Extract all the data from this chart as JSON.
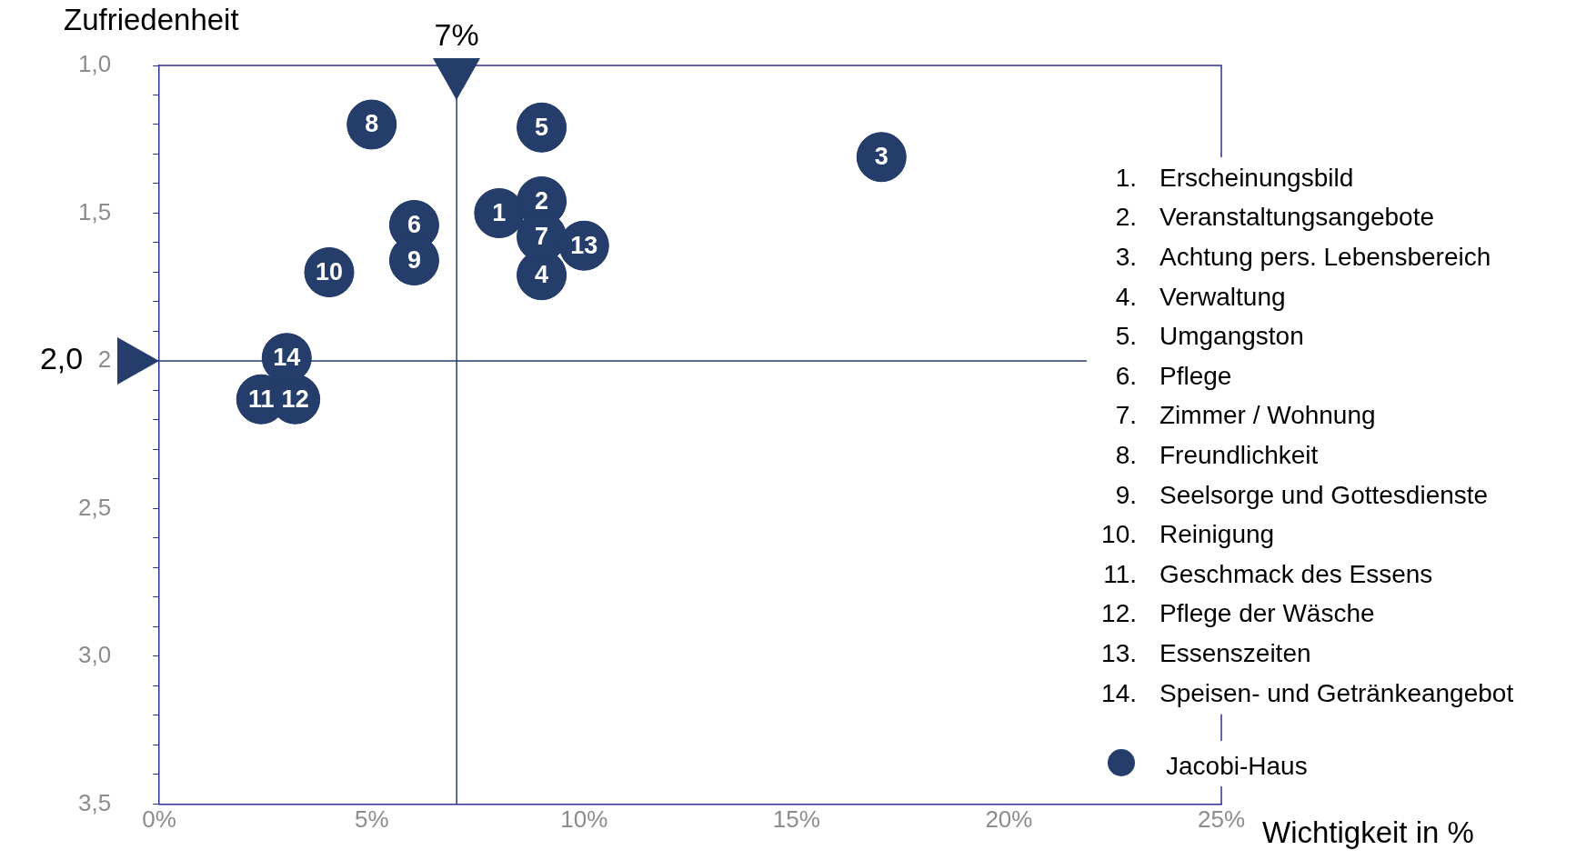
{
  "chart_data": {
    "type": "scatter",
    "xlabel": "Wichtigkeit in %",
    "ylabel": "Zufriedenheit",
    "xlim": [
      0,
      25
    ],
    "xticks": [
      {
        "value": 0,
        "label": "0%"
      },
      {
        "value": 5,
        "label": "5%"
      },
      {
        "value": 10,
        "label": "10%"
      },
      {
        "value": 15,
        "label": "15%"
      },
      {
        "value": 20,
        "label": "20%"
      },
      {
        "value": 25,
        "label": "25%"
      }
    ],
    "ylim": [
      3.5,
      1.0
    ],
    "yticks": [
      {
        "value": 1.0,
        "label": "1,0"
      },
      {
        "value": 1.1,
        "label": null
      },
      {
        "value": 1.2,
        "label": null
      },
      {
        "value": 1.3,
        "label": null
      },
      {
        "value": 1.4,
        "label": null
      },
      {
        "value": 1.5,
        "label": "1,5"
      },
      {
        "value": 1.6,
        "label": null
      },
      {
        "value": 1.7,
        "label": null
      },
      {
        "value": 1.8,
        "label": null
      },
      {
        "value": 1.9,
        "label": null
      },
      {
        "value": 2.0,
        "label": "2"
      },
      {
        "value": 2.1,
        "label": null
      },
      {
        "value": 2.2,
        "label": null
      },
      {
        "value": 2.3,
        "label": null
      },
      {
        "value": 2.4,
        "label": null
      },
      {
        "value": 2.5,
        "label": "2,5"
      },
      {
        "value": 2.6,
        "label": null
      },
      {
        "value": 2.7,
        "label": null
      },
      {
        "value": 2.8,
        "label": null
      },
      {
        "value": 2.9,
        "label": null
      },
      {
        "value": 3.0,
        "label": "3,0"
      },
      {
        "value": 3.1,
        "label": null
      },
      {
        "value": 3.2,
        "label": null
      },
      {
        "value": 3.3,
        "label": null
      },
      {
        "value": 3.4,
        "label": null
      },
      {
        "value": 3.5,
        "label": "3,5"
      }
    ],
    "grid": false,
    "legend": "bottom right",
    "marker": "circle",
    "series": [
      {
        "name": "Jacobi-Haus",
        "color": "#253d6b",
        "x": [
          8.0,
          9.0,
          17.0,
          9.0,
          9.0,
          6.0,
          9.0,
          5.0,
          6.0,
          4.0,
          2.4,
          3.2,
          10.0,
          3.0
        ],
        "values": [
          1.5,
          1.46,
          1.31,
          1.71,
          1.21,
          1.54,
          1.58,
          1.2,
          1.66,
          1.7,
          2.13,
          2.13,
          1.61,
          1.99
        ]
      }
    ],
    "ref_lines": [
      {
        "axis": "x",
        "value": 7,
        "label": "7%",
        "color": "#253d6b"
      },
      {
        "axis": "y",
        "value": 2.0,
        "label": "2,0",
        "color": "#253d6b"
      }
    ],
    "annotations": [
      {
        "text": "1",
        "x": 8.0,
        "y": 1.5
      },
      {
        "text": "2",
        "x": 9.0,
        "y": 1.46
      },
      {
        "text": "3",
        "x": 17.0,
        "y": 1.31
      },
      {
        "text": "4",
        "x": 9.0,
        "y": 1.71
      },
      {
        "text": "5",
        "x": 9.0,
        "y": 1.21
      },
      {
        "text": "6",
        "x": 6.0,
        "y": 1.54
      },
      {
        "text": "7",
        "x": 9.0,
        "y": 1.58
      },
      {
        "text": "8",
        "x": 5.0,
        "y": 1.2
      },
      {
        "text": "9",
        "x": 6.0,
        "y": 1.66
      },
      {
        "text": "10",
        "x": 4.0,
        "y": 1.7
      },
      {
        "text": "11",
        "x": 2.4,
        "y": 2.13
      },
      {
        "text": "12",
        "x": 3.2,
        "y": 2.13
      },
      {
        "text": "13",
        "x": 10.0,
        "y": 1.61
      },
      {
        "text": "14",
        "x": 3.0,
        "y": 1.99
      },
      "1. Erscheinungsbild",
      "2. Veranstaltungsangebote",
      "3. Achtung pers. Lebensbereich",
      "4. Verwaltung",
      "5. Umgangston",
      "6. Pflege",
      "7. Zimmer / Wohnung",
      "8. Freundlichkeit",
      "9. Seelsorge und Gottesdienste",
      "10. Reinigung",
      "11. Geschmack des Essens",
      "12. Pflege der Wäsche",
      "13. Essenszeiten",
      "14. Speisen- und Getränkeangebot"
    ]
  }
}
